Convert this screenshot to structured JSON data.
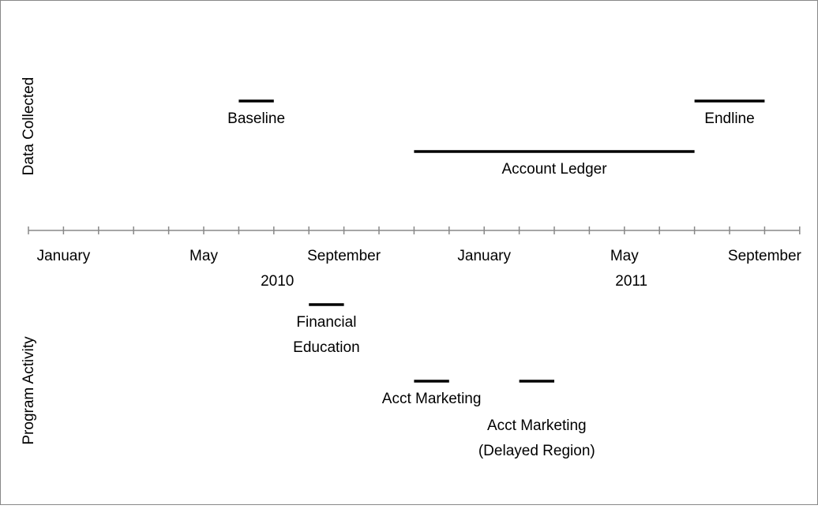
{
  "chart_data": {
    "type": "timeline",
    "groups": [
      "Data Collected",
      "Program Activity"
    ],
    "xlim": [
      0,
      22
    ],
    "xticks": [
      0,
      1,
      2,
      3,
      4,
      5,
      6,
      7,
      8,
      9,
      10,
      11,
      12,
      13,
      14,
      15,
      16,
      17,
      18,
      19,
      20,
      21,
      22
    ],
    "month_labels": [
      {
        "value": 1,
        "label": "January"
      },
      {
        "value": 5,
        "label": "May"
      },
      {
        "value": 9,
        "label": "September"
      },
      {
        "value": 13,
        "label": "January"
      },
      {
        "value": 17,
        "label": "May"
      },
      {
        "value": 21,
        "label": "September"
      }
    ],
    "year_labels": [
      {
        "value": 7.1,
        "label": "2010"
      },
      {
        "value": 17.2,
        "label": "2011"
      }
    ],
    "color": "#000000",
    "tasks": [
      {
        "lines": [
          "Baseline"
        ],
        "start": 6,
        "end": 7
      },
      {
        "lines": [
          "Endline"
        ],
        "start": 19,
        "end": 21
      },
      {
        "lines": [
          "Account Ledger"
        ],
        "start": 11,
        "end": 19
      },
      {
        "lines": [
          "Financial",
          "Education"
        ],
        "start": 8,
        "end": 9
      },
      {
        "lines": [
          "Acct Marketing"
        ],
        "start": 11,
        "end": 12
      },
      {
        "lines": [
          "Acct Marketing",
          "(Delayed Region)"
        ],
        "start": 14,
        "end": 15
      }
    ]
  }
}
